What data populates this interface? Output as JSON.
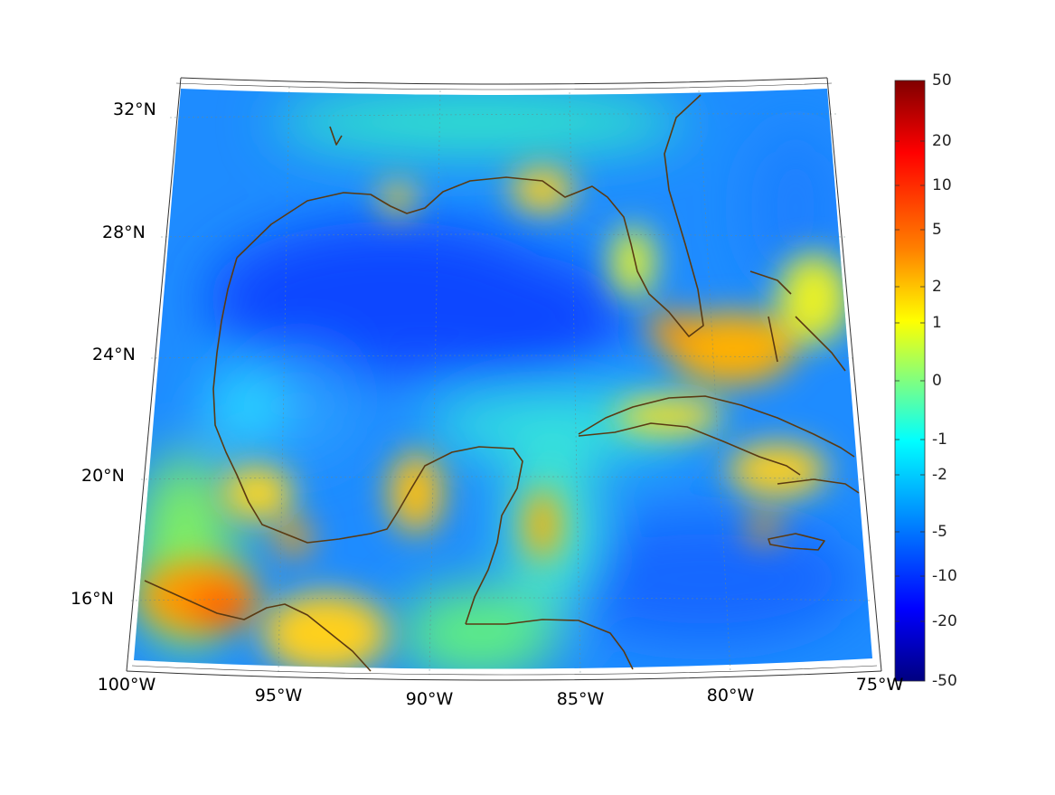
{
  "map": {
    "lat_labels": [
      {
        "text": "32°N",
        "value": 32
      },
      {
        "text": "28°N",
        "value": 28
      },
      {
        "text": "24°N",
        "value": 24
      },
      {
        "text": "20°N",
        "value": 20
      },
      {
        "text": "16°N",
        "value": 16
      }
    ],
    "lon_labels": [
      {
        "text": "100°W",
        "value": -100
      },
      {
        "text": "95°W",
        "value": -95
      },
      {
        "text": "90°W",
        "value": -90
      },
      {
        "text": "85°W",
        "value": -85
      },
      {
        "text": "80°W",
        "value": -80
      },
      {
        "text": "75°W",
        "value": -75
      }
    ],
    "extent": {
      "lon_min": -100,
      "lon_max": -75,
      "lat_min": 14,
      "lat_max": 32.6
    },
    "coast_color": "#5a3a12",
    "colors": {
      "deep_blue": "#0a3cff",
      "mid_blue": "#1e8cff",
      "cyan": "#1ee6ff",
      "yellow": "#ffe61e",
      "orange": "#ff9a00"
    }
  },
  "colorbar": {
    "tick_labels": [
      "50",
      "20",
      "10",
      "5",
      "2",
      "1",
      "0",
      "-1",
      "-2",
      "-5",
      "-10",
      "-20",
      "-50"
    ],
    "stops": [
      "#800000",
      "#ff0000",
      "#ff8000",
      "#ffff00",
      "#80ff80",
      "#00ffff",
      "#0080ff",
      "#0000ff",
      "#000080"
    ]
  }
}
